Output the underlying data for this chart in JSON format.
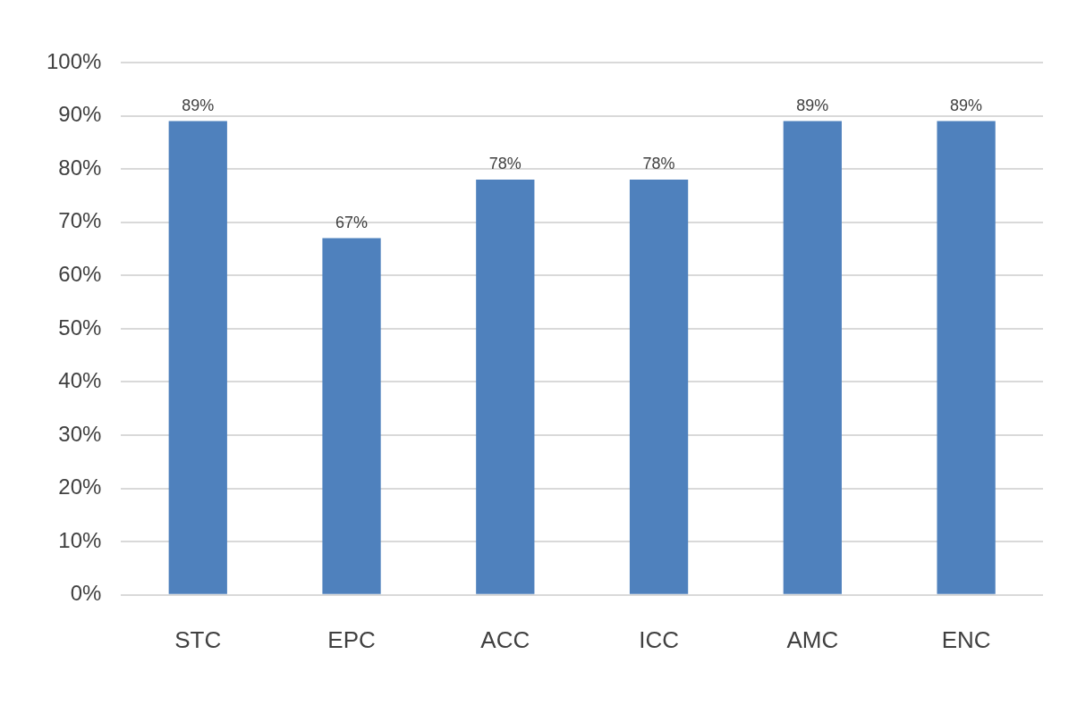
{
  "chart_data": {
    "type": "bar",
    "categories": [
      "STC",
      "EPC",
      "ACC",
      "ICC",
      "AMC",
      "ENC"
    ],
    "values": [
      89,
      67,
      78,
      78,
      89,
      89
    ],
    "value_labels": [
      "89%",
      "67%",
      "78%",
      "78%",
      "89%",
      "89%"
    ],
    "color": "#4f81bd",
    "ylim": [
      0,
      100
    ],
    "yticks": [
      {
        "value": 0,
        "label": "0%"
      },
      {
        "value": 10,
        "label": "10%"
      },
      {
        "value": 20,
        "label": "20%"
      },
      {
        "value": 30,
        "label": "30%"
      },
      {
        "value": 40,
        "label": "40%"
      },
      {
        "value": 50,
        "label": "50%"
      },
      {
        "value": 60,
        "label": "60%"
      },
      {
        "value": 70,
        "label": "70%"
      },
      {
        "value": 80,
        "label": "80%"
      },
      {
        "value": 90,
        "label": "90%"
      },
      {
        "value": 100,
        "label": "100%"
      }
    ],
    "grid": "y"
  }
}
